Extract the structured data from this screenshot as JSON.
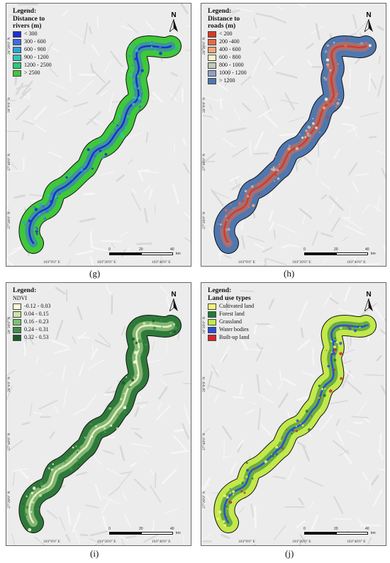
{
  "panels": [
    {
      "id": "g",
      "caption": "(g)",
      "legend_heading": "Legend:",
      "legend_title": "Distance to\nrivers (m)",
      "items": [
        {
          "label": "< 300",
          "color": "#1a2fd6"
        },
        {
          "label": "300 - 600",
          "color": "#3c6ee0"
        },
        {
          "label": "600 - 900",
          "color": "#2fa3d8"
        },
        {
          "label": "900 - 1200",
          "color": "#30c6b8"
        },
        {
          "label": "1200 - 2500",
          "color": "#2dc77a"
        },
        {
          "label": "> 2500",
          "color": "#3fc83a"
        }
      ],
      "corridor_color": "#3fc83a",
      "line_color": "#1a2fd6"
    },
    {
      "id": "h",
      "caption": "(h)",
      "legend_heading": "Legend:",
      "legend_title": "Distance to\nroads (m)",
      "items": [
        {
          "label": "< 200",
          "color": "#d83a26"
        },
        {
          "label": "200 -400",
          "color": "#e86b45"
        },
        {
          "label": "400 - 600",
          "color": "#f0a97a"
        },
        {
          "label": "600 - 800",
          "color": "#f7f2c6"
        },
        {
          "label": "800 - 1000",
          "color": "#c3c9b9"
        },
        {
          "label": "1000 - 1200",
          "color": "#8ea2c6"
        },
        {
          "label": "> 1200",
          "color": "#4f77b0"
        }
      ],
      "corridor_color": "#4f77b0",
      "line_color": "#d83a26"
    },
    {
      "id": "i",
      "caption": "(i)",
      "legend_heading": "Legend:",
      "legend_title": "NDVI",
      "items": [
        {
          "label": "-0.12 - 0.03",
          "color": "#fbfbd8"
        },
        {
          "label": "0.04 - 0.15",
          "color": "#c8e6a4"
        },
        {
          "label": "0.16 - 0.23",
          "color": "#7fc275"
        },
        {
          "label": "0.24 - 0.31",
          "color": "#3f9149"
        },
        {
          "label": "0.32 - 0.53",
          "color": "#1c5b2a"
        }
      ],
      "corridor_color": "#2f7a3a",
      "line_color": "#e8f2c4"
    },
    {
      "id": "j",
      "caption": "(j)",
      "legend_heading": "Legend:",
      "legend_title": "Land use types",
      "items": [
        {
          "label": "Cultivated land",
          "color": "#f4f27a"
        },
        {
          "label": "Forest land",
          "color": "#1f7a3a"
        },
        {
          "label": "Grassland",
          "color": "#c2e84a"
        },
        {
          "label": "Water bodies",
          "color": "#2a4fd6"
        },
        {
          "label": "Built-up land",
          "color": "#d8262a"
        }
      ],
      "corridor_color": "#c2e84a",
      "line_color": "#2a4fd6"
    }
  ],
  "north_label": "N",
  "lat_labels": [
    "28°20'0\" N",
    "28°0'0\" N",
    "27°40'0\" N",
    "27°20'0\" N"
  ],
  "lon_labels": [
    "103°0'0\" E",
    "103°20'0\" E",
    "103°40'0\" E"
  ],
  "scale_labels": [
    "0",
    "20",
    "40",
    "km"
  ]
}
